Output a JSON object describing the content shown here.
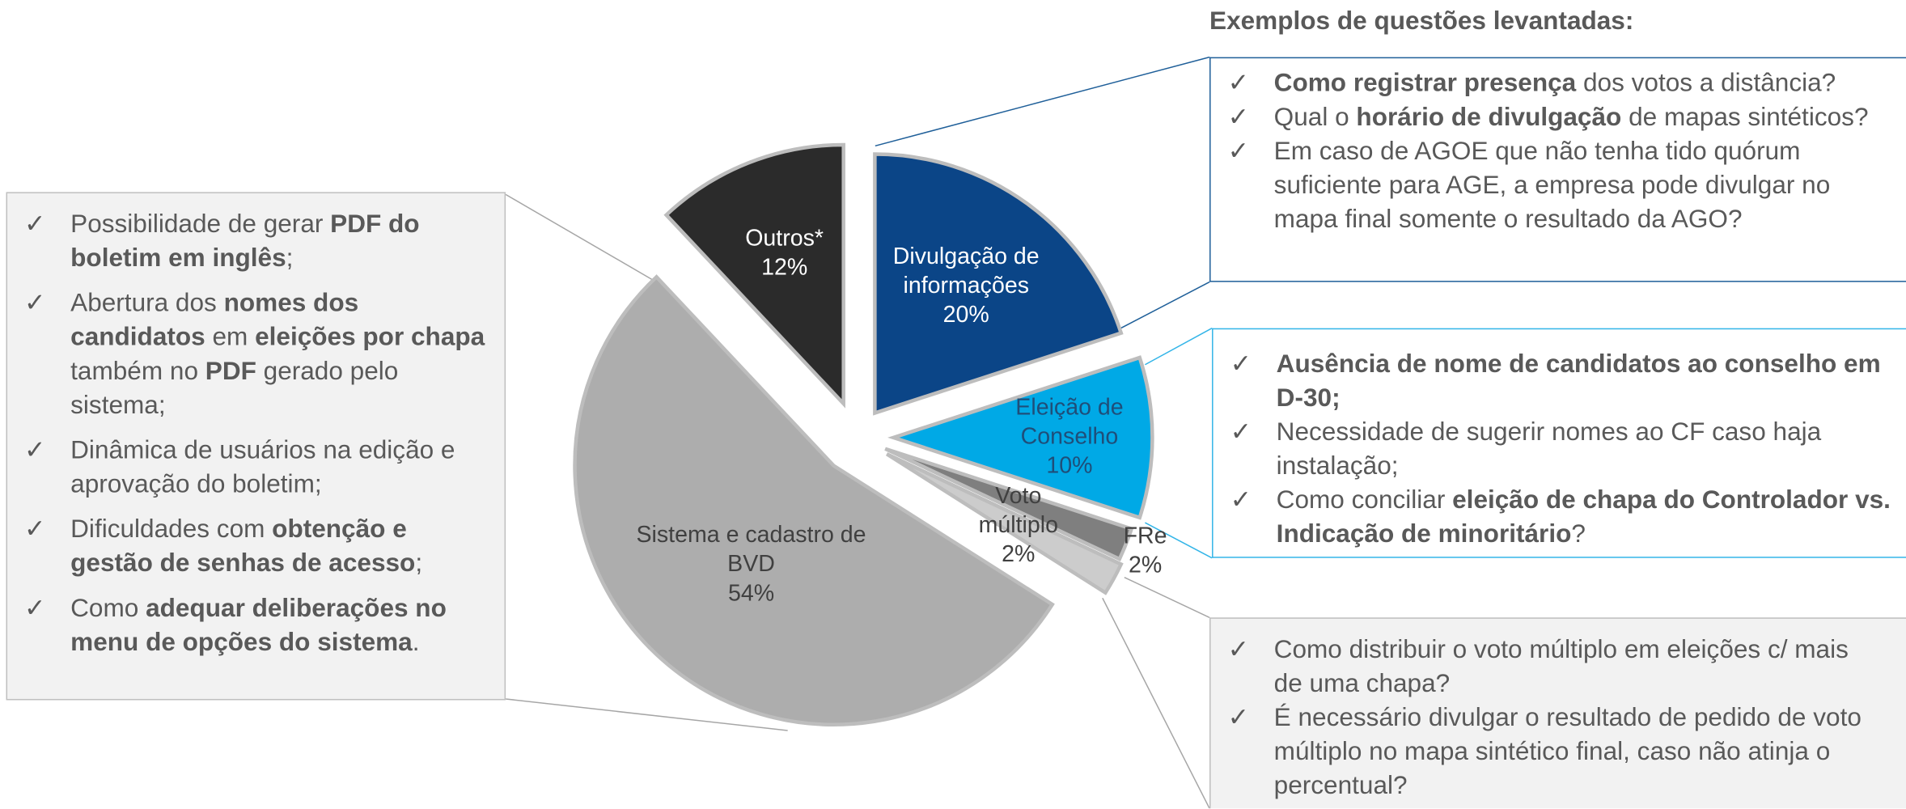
{
  "chart_data": {
    "type": "pie",
    "categories": [
      "Divulgação de informações",
      "Eleição de Conselho",
      "FRe",
      "Voto múltiplo",
      "Sistema e cadastro de BVD",
      "Outros*"
    ],
    "values": [
      20,
      10,
      2,
      2,
      54,
      12
    ],
    "value_labels": [
      "20%",
      "10%",
      "2%",
      "2%",
      "54%",
      "12%"
    ],
    "colors": [
      "#0b4587",
      "#00a9e6",
      "#7f7f7f",
      "#cccccc",
      "#adadad",
      "#2b2b2b"
    ]
  },
  "heading": "Exemplos de questões levantadas:",
  "bullet": "✓",
  "callouts": [
    {
      "items": [
        [
          "Possibilidade de gerar ",
          {
            "bold": "PDF do boletim em inglês"
          },
          ";"
        ],
        [
          "Abertura dos ",
          {
            "bold": "nomes dos candidatos"
          },
          " em ",
          {
            "bold": "eleições por chapa"
          },
          " também no ",
          {
            "bold": "PDF"
          },
          " gerado pelo sistema;"
        ],
        [
          "Dinâmica de usuários na edição e aprovação do boletim;"
        ],
        [
          "Dificuldades com ",
          {
            "bold": "obtenção e gestão de senhas de acesso"
          },
          ";"
        ],
        [
          "Como ",
          {
            "bold": "adequar deliberações no menu de opções do sistema"
          },
          "."
        ]
      ]
    },
    {
      "items": [
        [
          {
            "bold": "Como registrar presença"
          },
          " dos votos a distância?"
        ],
        [
          "Qual o ",
          {
            "bold": "horário de divulgação"
          },
          " de mapas sintéticos?"
        ],
        [
          "Em caso de AGOE que não tenha tido quórum suficiente para AGE, a empresa pode divulgar no mapa final somente o resultado da AGO?"
        ]
      ]
    },
    {
      "items": [
        [
          {
            "bold": "Ausência de nome de candidatos ao conselho em D-30;"
          }
        ],
        [
          "Necessidade de sugerir nomes ao CF caso haja instalação;"
        ],
        [
          "Como conciliar ",
          {
            "bold": "eleição de chapa do Controlador vs. Indicação de minoritário"
          },
          "?"
        ]
      ]
    },
    {
      "items": [
        [
          "Como distribuir o voto múltiplo em eleições c/ mais de uma chapa?"
        ],
        [
          "É necessário divulgar o resultado de pedido de voto múltiplo no mapa sintético final, caso não atinja o percentual?"
        ]
      ]
    }
  ]
}
